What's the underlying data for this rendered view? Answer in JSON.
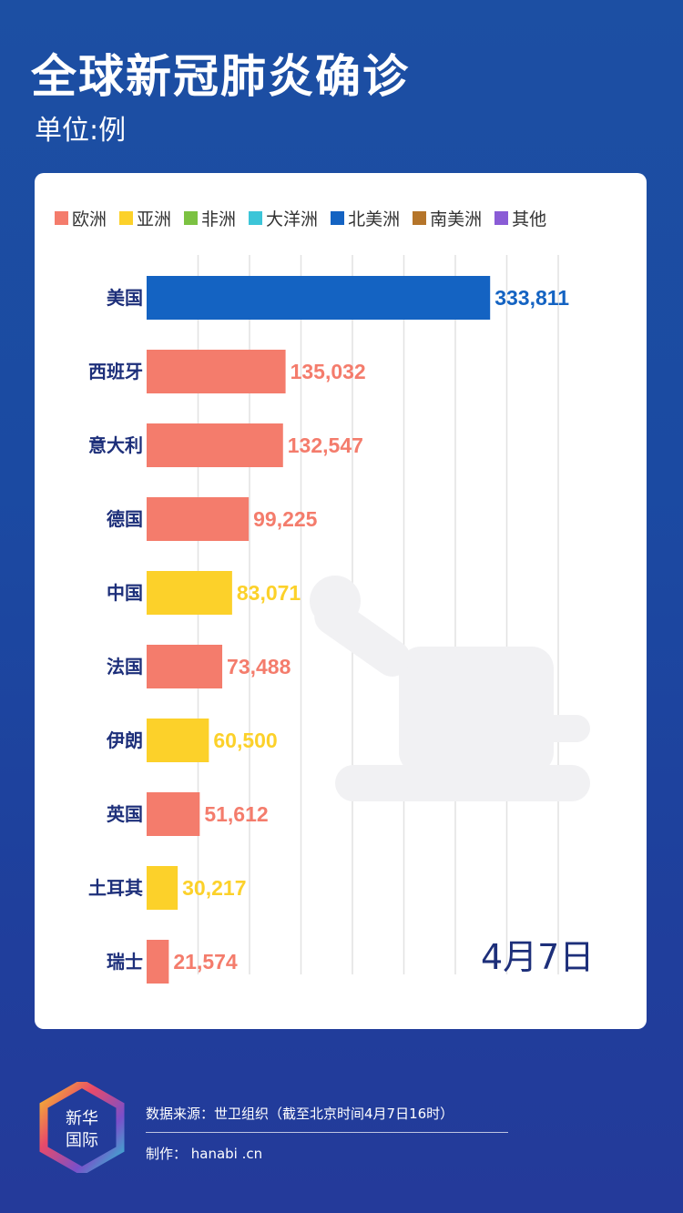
{
  "header": {
    "title": "全球新冠肺炎确诊",
    "unit": "单位:例"
  },
  "legend": [
    {
      "label": "欧洲",
      "color": "#f47c6c"
    },
    {
      "label": "亚洲",
      "color": "#fcd12a"
    },
    {
      "label": "非洲",
      "color": "#7cc242"
    },
    {
      "label": "大洋洲",
      "color": "#3cc5d8"
    },
    {
      "label": "北美洲",
      "color": "#1463c2"
    },
    {
      "label": "南美洲",
      "color": "#b5752a"
    },
    {
      "label": "其他",
      "color": "#8a5cd6"
    }
  ],
  "chart_data": {
    "type": "bar",
    "orientation": "horizontal",
    "title": "全球新冠肺炎确诊",
    "unit": "单位:例",
    "categories": [
      "美国",
      "西班牙",
      "意大利",
      "德国",
      "中国",
      "法国",
      "伊朗",
      "英国",
      "土耳其",
      "瑞士"
    ],
    "values": [
      333811,
      135032,
      132547,
      99225,
      83071,
      73488,
      60500,
      51612,
      30217,
      21574
    ],
    "value_labels": [
      "333,811",
      "135,032",
      "132,547",
      "99,225",
      "83,071",
      "73,488",
      "60,500",
      "51,612",
      "30,217",
      "21,574"
    ],
    "continent": [
      "北美洲",
      "欧洲",
      "欧洲",
      "欧洲",
      "亚洲",
      "欧洲",
      "亚洲",
      "欧洲",
      "亚洲",
      "欧洲"
    ],
    "colors": [
      "#1463c2",
      "#f47c6c",
      "#f47c6c",
      "#f47c6c",
      "#fcd12a",
      "#f47c6c",
      "#fcd12a",
      "#f47c6c",
      "#fcd12a",
      "#f47c6c"
    ],
    "xlim": [
      0,
      400000
    ],
    "grid": true,
    "legend_position": "top"
  },
  "date": "4月7日",
  "footer": {
    "logo_text_1": "新华",
    "logo_text_2": "国际",
    "source": "数据来源：世卫组织（截至北京时间4月7日16时）",
    "maker": "制作： hanabi .cn"
  }
}
